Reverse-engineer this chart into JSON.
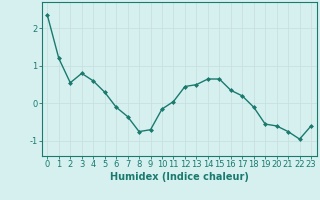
{
  "x": [
    0,
    1,
    2,
    3,
    4,
    5,
    6,
    7,
    8,
    9,
    10,
    11,
    12,
    13,
    14,
    15,
    16,
    17,
    18,
    19,
    20,
    21,
    22,
    23
  ],
  "y": [
    2.35,
    1.2,
    0.55,
    0.8,
    0.6,
    0.3,
    -0.1,
    -0.35,
    -0.75,
    -0.7,
    -0.15,
    0.05,
    0.45,
    0.5,
    0.65,
    0.65,
    0.35,
    0.2,
    -0.1,
    -0.55,
    -0.6,
    -0.75,
    -0.95,
    -0.6
  ],
  "line_color": "#1a7a6e",
  "marker": "D",
  "marker_size": 2,
  "bg_color": "#d6f0f0",
  "grid_color": "#c8e0e0",
  "xlabel": "Humidex (Indice chaleur)",
  "yticks": [
    -1,
    0,
    1,
    2
  ],
  "xticks": [
    0,
    1,
    2,
    3,
    4,
    5,
    6,
    7,
    8,
    9,
    10,
    11,
    12,
    13,
    14,
    15,
    16,
    17,
    18,
    19,
    20,
    21,
    22,
    23
  ],
  "xlim": [
    -0.5,
    23.5
  ],
  "ylim": [
    -1.4,
    2.7
  ],
  "tick_color": "#1a7a6e",
  "axis_color": "#1a7a6e",
  "label_fontsize": 7,
  "tick_fontsize": 6
}
